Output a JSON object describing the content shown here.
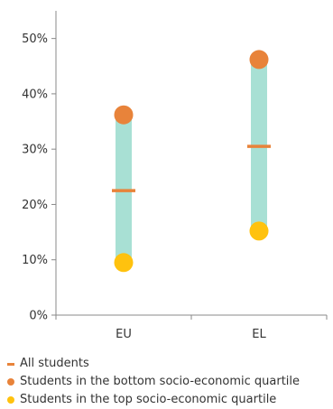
{
  "chart_data": {
    "type": "range-dot",
    "categories": [
      "EU",
      "EL"
    ],
    "y_ticks": [
      "0%",
      "10%",
      "20%",
      "30%",
      "40%",
      "50%"
    ],
    "ylim": [
      0,
      55
    ],
    "grid": false,
    "legend_position": "bottom-left",
    "series": [
      {
        "name": "All students",
        "marker": "dash",
        "color": "#E8833A",
        "values": [
          22.5,
          30.5
        ]
      },
      {
        "name": "Students in the bottom socio-economic quartile",
        "marker": "dot",
        "color": "#E8833A",
        "values": [
          36.2,
          46.2
        ]
      },
      {
        "name": "Students in the top socio-economic quartile",
        "marker": "dot",
        "color": "#FFC20E",
        "values": [
          9.5,
          15.2
        ]
      }
    ],
    "range_bar_color": "#A8E0D4",
    "axis_color": "#888888"
  }
}
